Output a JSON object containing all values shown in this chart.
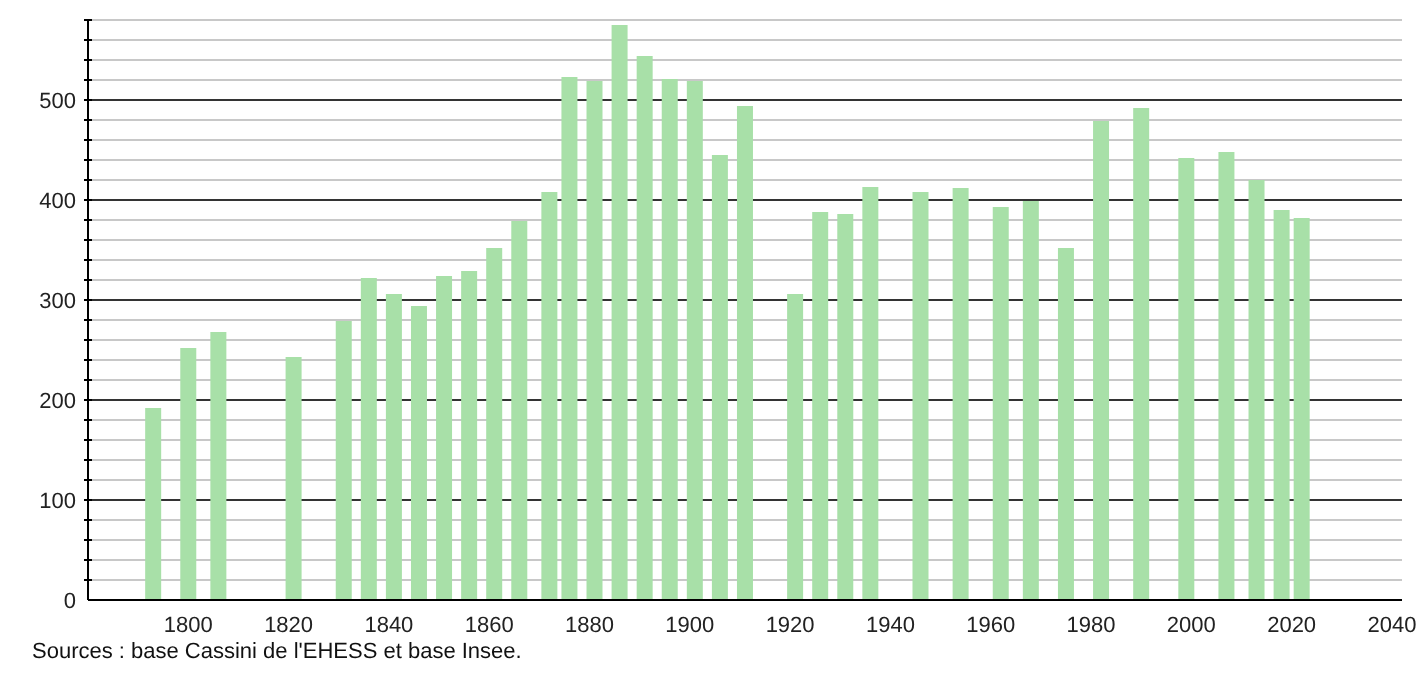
{
  "chart_data": {
    "type": "bar",
    "x": [
      1793,
      1800,
      1806,
      1821,
      1831,
      1836,
      1841,
      1846,
      1851,
      1856,
      1861,
      1866,
      1872,
      1876,
      1881,
      1886,
      1891,
      1896,
      1901,
      1906,
      1911,
      1921,
      1926,
      1931,
      1936,
      1946,
      1954,
      1962,
      1968,
      1975,
      1982,
      1990,
      1999,
      2007,
      2013,
      2018,
      2022
    ],
    "values": [
      192,
      252,
      268,
      243,
      279,
      322,
      306,
      294,
      324,
      329,
      352,
      379,
      408,
      523,
      519,
      575,
      544,
      521,
      519,
      445,
      494,
      306,
      388,
      386,
      413,
      408,
      412,
      393,
      399,
      352,
      479,
      492,
      442,
      448,
      420,
      390,
      382
    ],
    "color": "#a8e0a8",
    "xlim": [
      1780,
      2042
    ],
    "xticks": [
      1800,
      1820,
      1840,
      1860,
      1880,
      1900,
      1920,
      1940,
      1960,
      1980,
      2000,
      2020,
      2040
    ],
    "ylim": [
      0,
      580
    ],
    "yticks": [
      0,
      {
        "value": 20,
        "label": null
      },
      {
        "value": 40,
        "label": null
      },
      {
        "value": 60,
        "label": null
      },
      {
        "value": 80,
        "label": null
      },
      100,
      {
        "value": 120,
        "label": null
      },
      {
        "value": 140,
        "label": null
      },
      {
        "value": 160,
        "label": null
      },
      {
        "value": 180,
        "label": null
      },
      200,
      {
        "value": 220,
        "label": null
      },
      {
        "value": 240,
        "label": null
      },
      {
        "value": 260,
        "label": null
      },
      {
        "value": 280,
        "label": null
      },
      300,
      {
        "value": 320,
        "label": null
      },
      {
        "value": 340,
        "label": null
      },
      {
        "value": 360,
        "label": null
      },
      {
        "value": 380,
        "label": null
      },
      400,
      {
        "value": 420,
        "label": null
      },
      {
        "value": 440,
        "label": null
      },
      {
        "value": 460,
        "label": null
      },
      {
        "value": 480,
        "label": null
      },
      500,
      {
        "value": 520,
        "label": null
      },
      {
        "value": 540,
        "label": null
      },
      {
        "value": 560,
        "label": null
      },
      {
        "value": 580,
        "label": null
      }
    ],
    "grid": "y",
    "annotations": [
      "Sources : base Cassini de l'EHESS et base Insee."
    ]
  }
}
